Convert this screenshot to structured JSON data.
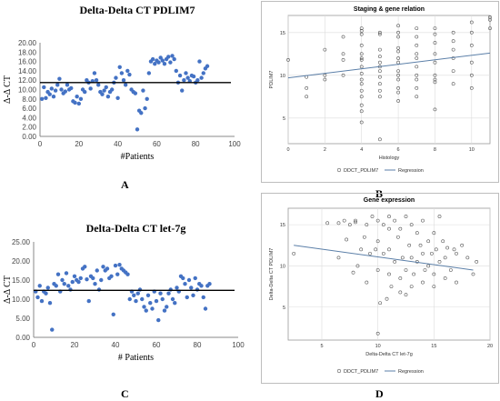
{
  "chart_data": [
    {
      "id": "A",
      "type": "scatter",
      "title": "Delta-Delta CT PDLIM7",
      "xlabel": "#Patients",
      "ylabel": "Δ-Δ CT",
      "xlim": [
        0,
        100
      ],
      "ylim": [
        0,
        20
      ],
      "xticks": [
        "0",
        "20",
        "40",
        "60",
        "80",
        "100"
      ],
      "yticks": [
        "0.00",
        "2.00",
        "4.00",
        "6.00",
        "8.00",
        "10.00",
        "12.00",
        "14.00",
        "16.00",
        "18.00",
        "20.00"
      ],
      "grid": false,
      "point_color": "#4472C4",
      "hline": 11.5,
      "points": [
        [
          1,
          8
        ],
        [
          2,
          10.5
        ],
        [
          3,
          8.2
        ],
        [
          4,
          9.5
        ],
        [
          5,
          9
        ],
        [
          6,
          10.2
        ],
        [
          7,
          8.5
        ],
        [
          8,
          9.8
        ],
        [
          9,
          11
        ],
        [
          10,
          12.3
        ],
        [
          11,
          10
        ],
        [
          12,
          9.2
        ],
        [
          13,
          9.6
        ],
        [
          14,
          11
        ],
        [
          15,
          10
        ],
        [
          16,
          10.3
        ],
        [
          17,
          7.5
        ],
        [
          18,
          7.2
        ],
        [
          19,
          8.5
        ],
        [
          20,
          7
        ],
        [
          21,
          8
        ],
        [
          22,
          10
        ],
        [
          23,
          9.5
        ],
        [
          24,
          12
        ],
        [
          25,
          11.5
        ],
        [
          26,
          10.2
        ],
        [
          27,
          11.8
        ],
        [
          28,
          13.5
        ],
        [
          29,
          12
        ],
        [
          30,
          11
        ],
        [
          31,
          9.5
        ],
        [
          32,
          9
        ],
        [
          33,
          9.8
        ],
        [
          34,
          10.5
        ],
        [
          35,
          8.5
        ],
        [
          36,
          9.5
        ],
        [
          37,
          10
        ],
        [
          38,
          11.5
        ],
        [
          39,
          12.5
        ],
        [
          40,
          8.2
        ],
        [
          41,
          14.8
        ],
        [
          42,
          13.5
        ],
        [
          43,
          12
        ],
        [
          44,
          11
        ],
        [
          45,
          14
        ],
        [
          46,
          13.2
        ],
        [
          47,
          10
        ],
        [
          48,
          9.5
        ],
        [
          49,
          9.2
        ],
        [
          50,
          1.5
        ],
        [
          51,
          5.5
        ],
        [
          52,
          5
        ],
        [
          53,
          9.8
        ],
        [
          54,
          6
        ],
        [
          55,
          8
        ],
        [
          56,
          13.5
        ],
        [
          57,
          16
        ],
        [
          58,
          16.5
        ],
        [
          59,
          15.5
        ],
        [
          60,
          16.2
        ],
        [
          61,
          15.8
        ],
        [
          62,
          16.8
        ],
        [
          63,
          16.2
        ],
        [
          64,
          15.5
        ],
        [
          65,
          16.5
        ],
        [
          66,
          17
        ],
        [
          67,
          15.8
        ],
        [
          68,
          17.2
        ],
        [
          69,
          16.5
        ],
        [
          70,
          14
        ],
        [
          71,
          11.5
        ],
        [
          72,
          13
        ],
        [
          73,
          9.8
        ],
        [
          74,
          12
        ],
        [
          75,
          13.5
        ],
        [
          76,
          12.5
        ],
        [
          77,
          11.8
        ],
        [
          78,
          13
        ],
        [
          79,
          12.8
        ],
        [
          80,
          11.5
        ],
        [
          81,
          12
        ],
        [
          82,
          16
        ],
        [
          83,
          12.5
        ],
        [
          84,
          13.5
        ],
        [
          85,
          14.5
        ],
        [
          86,
          15
        ]
      ]
    },
    {
      "id": "B",
      "type": "scatter",
      "title": "Staging & gene relation",
      "xlabel": "Histology",
      "ylabel": "PDLIM7",
      "xlim": [
        0,
        11
      ],
      "ylim": [
        2,
        17
      ],
      "xticks": [
        "0",
        "2",
        "4",
        "6",
        "8",
        "10"
      ],
      "yticks": [
        "5",
        "10",
        "15"
      ],
      "grid": true,
      "legend": [
        "DDCT_PDLIM7",
        "Regression"
      ],
      "legend_position": "bottom",
      "regression": [
        [
          0,
          9.7
        ],
        [
          11,
          12.6
        ]
      ],
      "points": [
        [
          0,
          11.8
        ],
        [
          1,
          9.8
        ],
        [
          1,
          8.5
        ],
        [
          1,
          7.5
        ],
        [
          2,
          10
        ],
        [
          2,
          9.5
        ],
        [
          2,
          13
        ],
        [
          3,
          11.8
        ],
        [
          3,
          12.5
        ],
        [
          3,
          14.5
        ],
        [
          3,
          10
        ],
        [
          4,
          15.5
        ],
        [
          4,
          15.2
        ],
        [
          4,
          14.8
        ],
        [
          4,
          13.5
        ],
        [
          4,
          12.5
        ],
        [
          4,
          12
        ],
        [
          4,
          11.8
        ],
        [
          4,
          11
        ],
        [
          4,
          10.2
        ],
        [
          4,
          9.5
        ],
        [
          4,
          9
        ],
        [
          4,
          8.2
        ],
        [
          4,
          7.5
        ],
        [
          4,
          6.5
        ],
        [
          4,
          5.8
        ],
        [
          4,
          4.5
        ],
        [
          5,
          15
        ],
        [
          5,
          14.8
        ],
        [
          5,
          13
        ],
        [
          5,
          12.2
        ],
        [
          5,
          11.5
        ],
        [
          5,
          11
        ],
        [
          5,
          10.5
        ],
        [
          5,
          9.8
        ],
        [
          5,
          9
        ],
        [
          5,
          8.2
        ],
        [
          5,
          7.5
        ],
        [
          5,
          2.5
        ],
        [
          6,
          15.8
        ],
        [
          6,
          15
        ],
        [
          6,
          14.5
        ],
        [
          6,
          13.2
        ],
        [
          6,
          12.8
        ],
        [
          6,
          12
        ],
        [
          6,
          11.5
        ],
        [
          6,
          10.5
        ],
        [
          6,
          10
        ],
        [
          6,
          9.5
        ],
        [
          6,
          8.5
        ],
        [
          6,
          8
        ],
        [
          6,
          7
        ],
        [
          7,
          15.5
        ],
        [
          7,
          14.5
        ],
        [
          7,
          13.5
        ],
        [
          7,
          12.5
        ],
        [
          7,
          12
        ],
        [
          7,
          11
        ],
        [
          7,
          10
        ],
        [
          7,
          9.5
        ],
        [
          7,
          8.5
        ],
        [
          7,
          7.5
        ],
        [
          8,
          15.5
        ],
        [
          8,
          14.8
        ],
        [
          8,
          13.8
        ],
        [
          8,
          12.5
        ],
        [
          8,
          11.5
        ],
        [
          8,
          10
        ],
        [
          8,
          9.5
        ],
        [
          8,
          9.2
        ],
        [
          8,
          6
        ],
        [
          9,
          15
        ],
        [
          9,
          14
        ],
        [
          9,
          13
        ],
        [
          9,
          12
        ],
        [
          9,
          10.5
        ],
        [
          9,
          9
        ],
        [
          10,
          16.2
        ],
        [
          10,
          15
        ],
        [
          10,
          13.5
        ],
        [
          10,
          11.5
        ],
        [
          10,
          10
        ],
        [
          10,
          8.5
        ],
        [
          11,
          16.8
        ],
        [
          11,
          16.5
        ],
        [
          11,
          15.5
        ]
      ]
    },
    {
      "id": "C",
      "type": "scatter",
      "title": "Delta-Delta CT let-7g",
      "xlabel": "# Patients",
      "ylabel": "Δ-Δ CT",
      "xlim": [
        0,
        100
      ],
      "ylim": [
        0,
        25
      ],
      "xticks": [
        "0",
        "20",
        "40",
        "60",
        "80",
        "100"
      ],
      "yticks": [
        "0.00",
        "5.00",
        "10.00",
        "15.00",
        "20.00",
        "25.00"
      ],
      "grid": false,
      "point_color": "#4472C4",
      "hline": 12.3,
      "points": [
        [
          1,
          12
        ],
        [
          2,
          10.5
        ],
        [
          3,
          13.5
        ],
        [
          4,
          9.5
        ],
        [
          5,
          12
        ],
        [
          6,
          11.5
        ],
        [
          7,
          13
        ],
        [
          8,
          9
        ],
        [
          9,
          2
        ],
        [
          10,
          14
        ],
        [
          11,
          13.5
        ],
        [
          12,
          16.5
        ],
        [
          13,
          12
        ],
        [
          14,
          15
        ],
        [
          15,
          14
        ],
        [
          16,
          16.8
        ],
        [
          17,
          13.5
        ],
        [
          18,
          12.5
        ],
        [
          19,
          14.5
        ],
        [
          20,
          16
        ],
        [
          21,
          15
        ],
        [
          22,
          14.5
        ],
        [
          23,
          15.5
        ],
        [
          24,
          18
        ],
        [
          25,
          18.5
        ],
        [
          26,
          15.2
        ],
        [
          27,
          9.5
        ],
        [
          28,
          16
        ],
        [
          29,
          15.5
        ],
        [
          30,
          14
        ],
        [
          31,
          17.5
        ],
        [
          32,
          12.5
        ],
        [
          33,
          15
        ],
        [
          34,
          18.5
        ],
        [
          35,
          17.5
        ],
        [
          36,
          18
        ],
        [
          37,
          15.5
        ],
        [
          38,
          16
        ],
        [
          39,
          6
        ],
        [
          40,
          18.8
        ],
        [
          41,
          16.5
        ],
        [
          42,
          19
        ],
        [
          43,
          18
        ],
        [
          44,
          17.5
        ],
        [
          45,
          17
        ],
        [
          46,
          16.5
        ],
        [
          47,
          10
        ],
        [
          48,
          12
        ],
        [
          49,
          11
        ],
        [
          50,
          9.5
        ],
        [
          51,
          11.5
        ],
        [
          52,
          12.5
        ],
        [
          53,
          10
        ],
        [
          54,
          8
        ],
        [
          55,
          7
        ],
        [
          56,
          11
        ],
        [
          57,
          9
        ],
        [
          58,
          7.5
        ],
        [
          59,
          12
        ],
        [
          60,
          9.5
        ],
        [
          61,
          4.5
        ],
        [
          62,
          11.5
        ],
        [
          63,
          10
        ],
        [
          64,
          7
        ],
        [
          65,
          8
        ],
        [
          66,
          11.5
        ],
        [
          67,
          12.5
        ],
        [
          68,
          10
        ],
        [
          69,
          9
        ],
        [
          70,
          13
        ],
        [
          71,
          12
        ],
        [
          72,
          16
        ],
        [
          73,
          15.5
        ],
        [
          74,
          14
        ],
        [
          75,
          10.5
        ],
        [
          76,
          15
        ],
        [
          77,
          13
        ],
        [
          78,
          11
        ],
        [
          79,
          15.5
        ],
        [
          80,
          12.5
        ],
        [
          81,
          14
        ],
        [
          82,
          13.5
        ],
        [
          83,
          10.5
        ],
        [
          84,
          7.5
        ],
        [
          85,
          13.5
        ],
        [
          86,
          14
        ]
      ]
    },
    {
      "id": "D",
      "type": "scatter",
      "title": "Gene expression",
      "xlabel": "Delta-Delta CT let-7g",
      "ylabel": "Delta-Delta CT PDLIM7",
      "xlim": [
        2,
        20
      ],
      "ylim": [
        1,
        17
      ],
      "xticks": [
        "5",
        "10",
        "15",
        "20"
      ],
      "yticks": [
        "5",
        "10",
        "15"
      ],
      "grid": true,
      "legend": [
        "DDCT_PDLIM7",
        "Regression"
      ],
      "legend_position": "bottom",
      "regression": [
        [
          2.5,
          12.5
        ],
        [
          18.5,
          9.5
        ]
      ],
      "points": [
        [
          2.5,
          11.5
        ],
        [
          5.5,
          15.2
        ],
        [
          6.5,
          11
        ],
        [
          7,
          15.5
        ],
        [
          7.2,
          13.2
        ],
        [
          7.5,
          15
        ],
        [
          7.8,
          9.2
        ],
        [
          8,
          15.3
        ],
        [
          8.2,
          10
        ],
        [
          8.5,
          12
        ],
        [
          8.8,
          13.5
        ],
        [
          9,
          15
        ],
        [
          9,
          8
        ],
        [
          9.3,
          11.5
        ],
        [
          9.5,
          16
        ],
        [
          9.8,
          12
        ],
        [
          10,
          15.5
        ],
        [
          10,
          13
        ],
        [
          10,
          9.5
        ],
        [
          10.2,
          5.5
        ],
        [
          10.5,
          15
        ],
        [
          10.5,
          11.5
        ],
        [
          10.8,
          6
        ],
        [
          11,
          16
        ],
        [
          11,
          14.5
        ],
        [
          11,
          12
        ],
        [
          11,
          9
        ],
        [
          11.2,
          7.5
        ],
        [
          11.5,
          15.5
        ],
        [
          11.5,
          10.5
        ],
        [
          11.8,
          13.5
        ],
        [
          12,
          14.5
        ],
        [
          12,
          8.5
        ],
        [
          12,
          6.8
        ],
        [
          12.2,
          11
        ],
        [
          12.5,
          16
        ],
        [
          12.5,
          9.5
        ],
        [
          12.5,
          6.5
        ],
        [
          12.8,
          12.5
        ],
        [
          13,
          15
        ],
        [
          13,
          11
        ],
        [
          13,
          7.5
        ],
        [
          13.2,
          9
        ],
        [
          13.5,
          14
        ],
        [
          13.5,
          10.5
        ],
        [
          13.8,
          12.5
        ],
        [
          14,
          15.5
        ],
        [
          14,
          8
        ],
        [
          14,
          11.5
        ],
        [
          14.2,
          9.5
        ],
        [
          14.5,
          13
        ],
        [
          14.5,
          10
        ],
        [
          14.8,
          11.5
        ],
        [
          15,
          14
        ],
        [
          15,
          9
        ],
        [
          15,
          7.5
        ],
        [
          15.2,
          12
        ],
        [
          15.5,
          16
        ],
        [
          15.5,
          10.5
        ],
        [
          15.8,
          13
        ],
        [
          16,
          11
        ],
        [
          16,
          8.5
        ],
        [
          16.2,
          12.2
        ],
        [
          16.5,
          9.5
        ],
        [
          16.8,
          12
        ],
        [
          17,
          11.5
        ],
        [
          17,
          8
        ],
        [
          17.5,
          12.5
        ],
        [
          18,
          11
        ],
        [
          18.5,
          9
        ],
        [
          18.8,
          10.5
        ],
        [
          6.5,
          15.2
        ],
        [
          8,
          15.5
        ],
        [
          10,
          1.8
        ]
      ]
    }
  ],
  "panel_labels": [
    "A",
    "B",
    "C",
    "D"
  ]
}
